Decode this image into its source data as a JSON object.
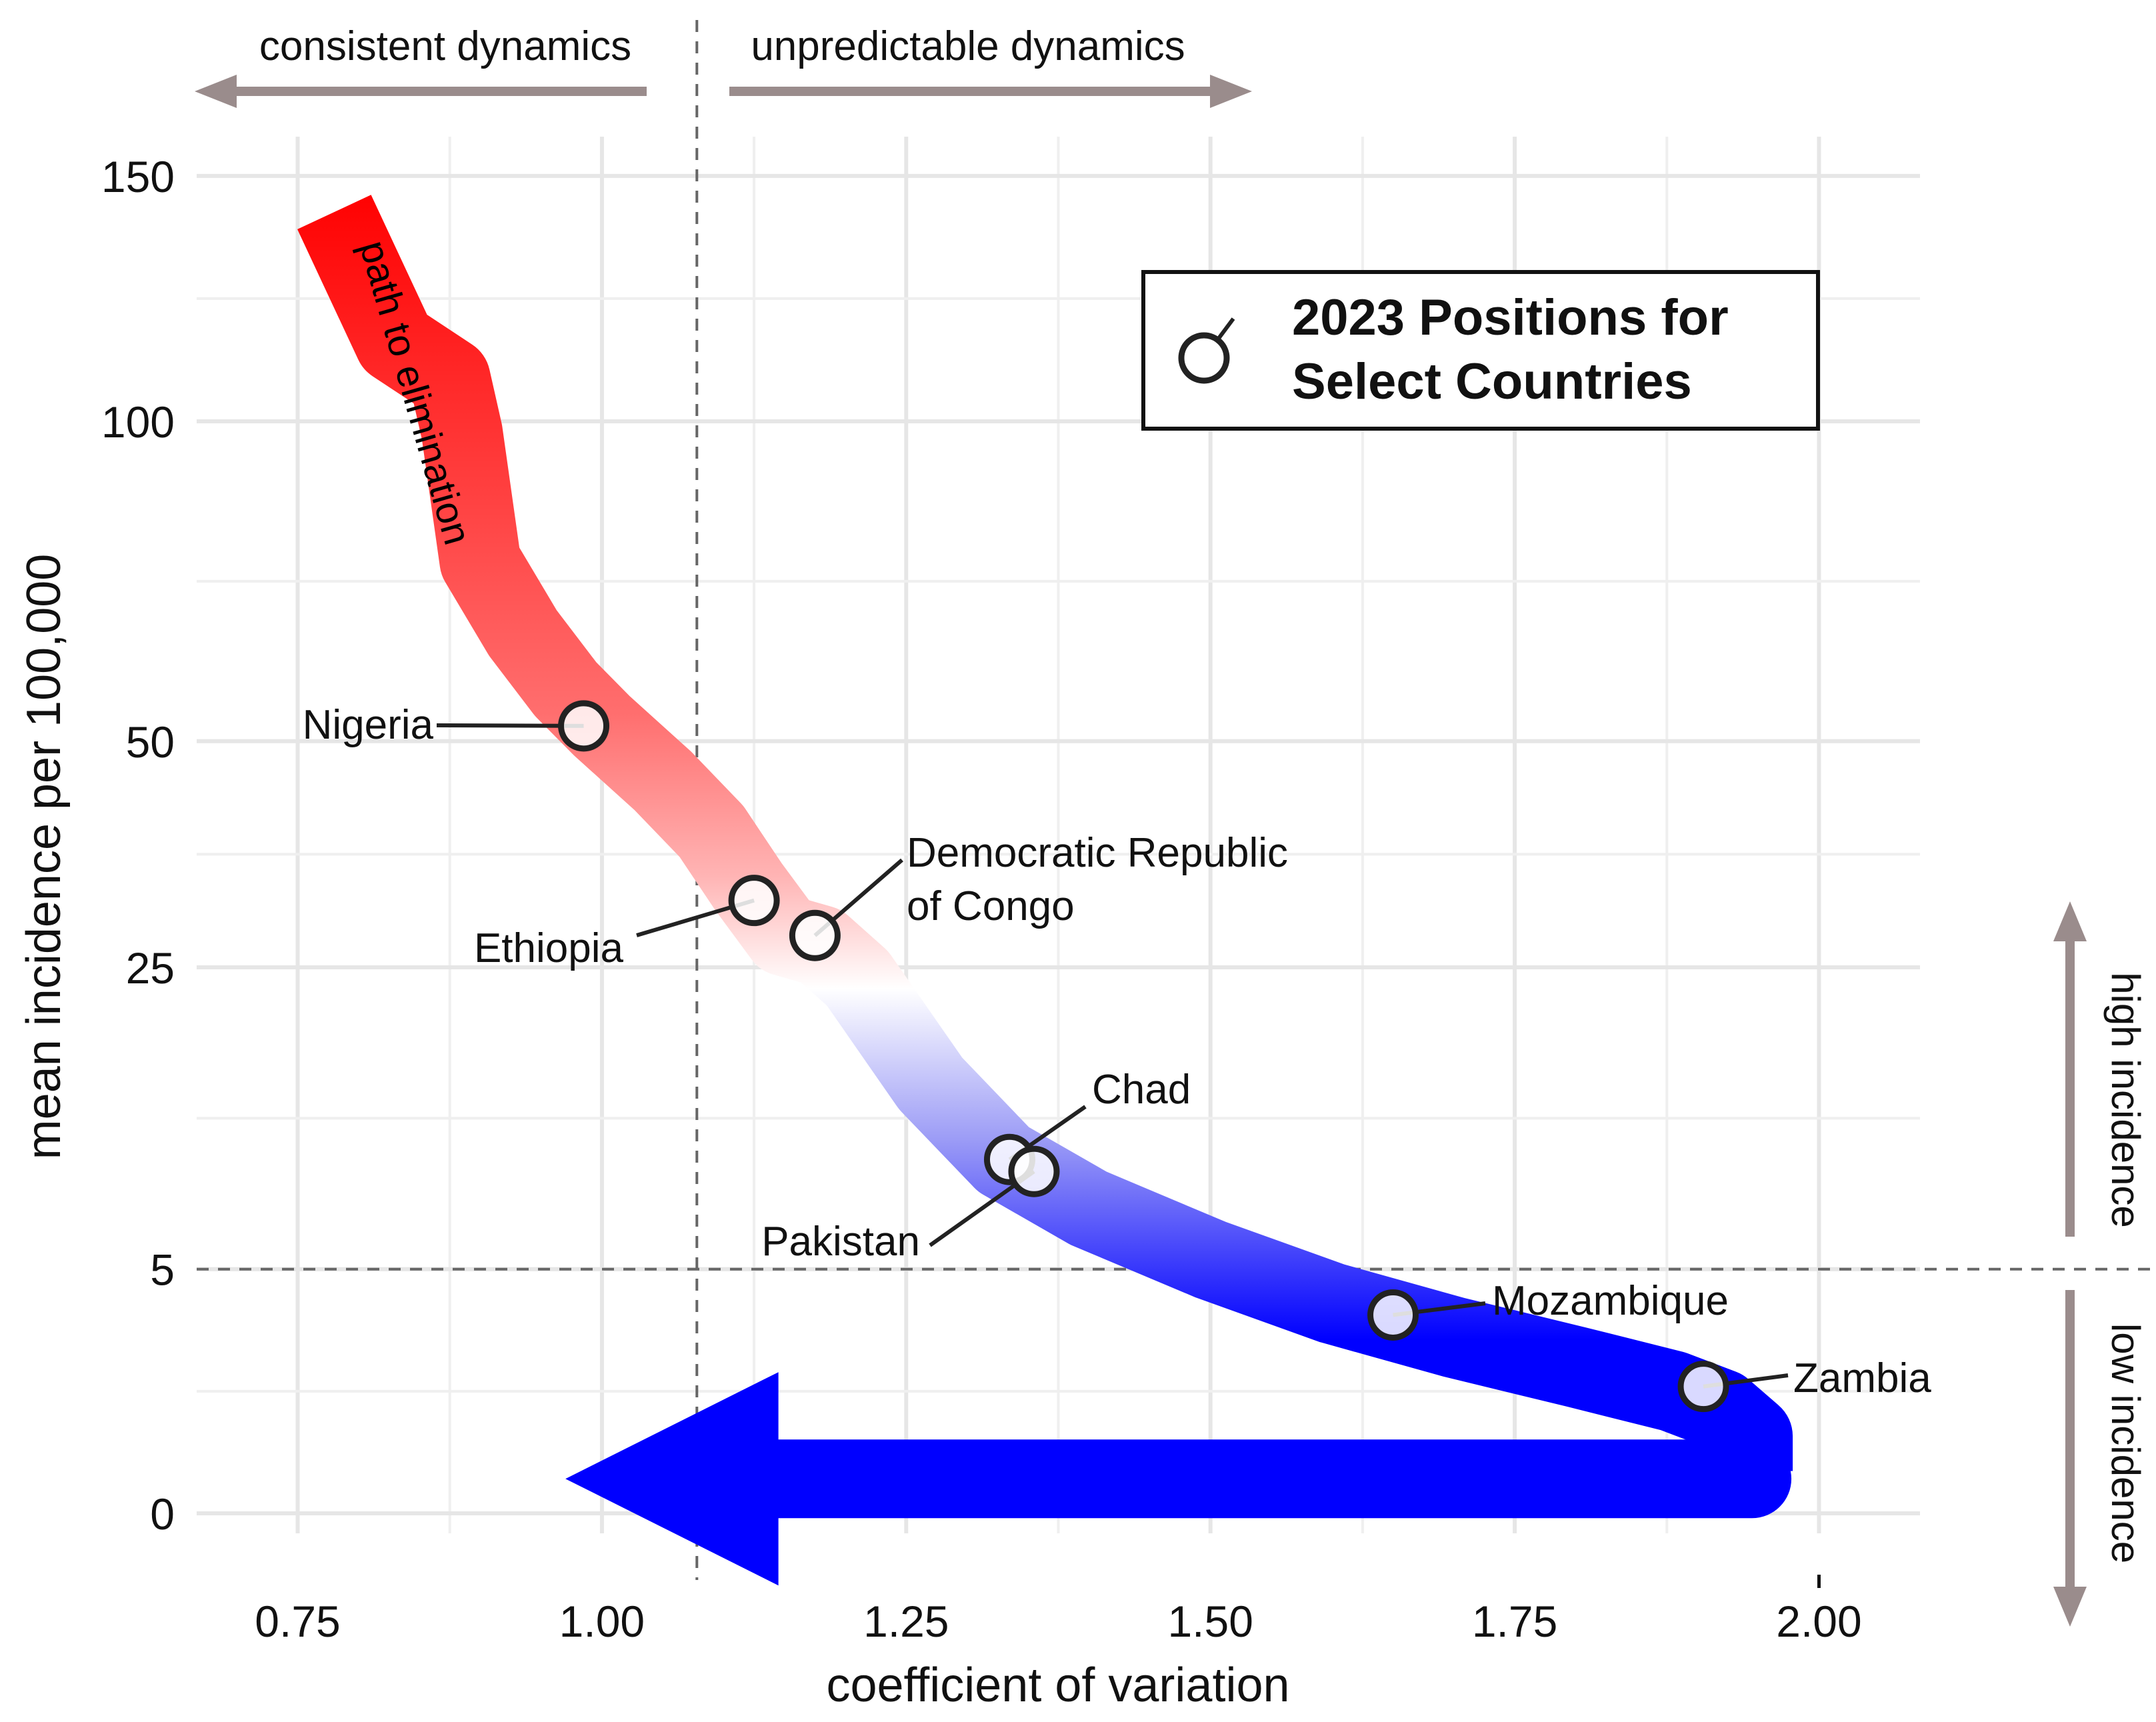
{
  "chart_data": {
    "type": "line",
    "title": "",
    "xlabel": "coefficient of variation",
    "ylabel": "mean incidence per 100,000",
    "xlim": [
      0.667,
      2.083
    ],
    "x_ticks": [
      0.75,
      1.0,
      1.25,
      1.5,
      1.75,
      2.0
    ],
    "x_tick_labels": [
      "0.75",
      "1.00",
      "1.25",
      "1.50",
      "1.75",
      "2.00"
    ],
    "y_ticks": [
      0,
      5,
      25,
      50,
      100,
      150
    ],
    "y_tick_labels": [
      "0",
      "5",
      "25",
      "50",
      "100",
      "150"
    ],
    "y_scale": "square-root",
    "vline_x": 1.078,
    "hline_y": 5,
    "path_label": "path to elimination",
    "path": {
      "x": [
        0.78,
        0.83,
        0.875,
        0.885,
        0.9,
        0.935,
        0.97,
        1.0,
        1.05,
        1.09,
        1.12,
        1.15,
        1.18,
        1.21,
        1.27,
        1.33,
        1.4,
        1.5,
        1.6,
        1.7,
        1.8,
        1.88,
        1.92,
        1.945,
        1.945
      ],
      "y": [
        142,
        115,
        108,
        98,
        76,
        65,
        57,
        52,
        45,
        39,
        33,
        28,
        27,
        24,
        15.5,
        10.5,
        7.8,
        5.4,
        3.7,
        2.6,
        1.8,
        1.25,
        0.9,
        0.5,
        0.15
      ],
      "colors": [
        "#ff0000",
        "#ffffff",
        "#0000ff"
      ]
    },
    "arrow": {
      "x_from": 1.945,
      "x_to": 0.97,
      "y": 0.1,
      "color": "#0000ff"
    },
    "points": [
      {
        "name": "Nigeria",
        "x": 0.985,
        "y": 52,
        "label_lines": [
          "Nigeria"
        ]
      },
      {
        "name": "Ethiopia",
        "x": 1.125,
        "y": 31.5,
        "label_lines": [
          "Ethiopia"
        ]
      },
      {
        "name": "Democratic Republic of Congo",
        "x": 1.175,
        "y": 28,
        "label_lines": [
          "Democratic Republic",
          "of Congo"
        ]
      },
      {
        "name": "Chad",
        "x": 1.335,
        "y": 10.5,
        "label_lines": [
          "Chad"
        ]
      },
      {
        "name": "Pakistan",
        "x": 1.355,
        "y": 9.8,
        "label_lines": [
          "Pakistan"
        ]
      },
      {
        "name": "Mozambique",
        "x": 1.65,
        "y": 3.3,
        "label_lines": [
          "Mozambique"
        ]
      },
      {
        "name": "Zambia",
        "x": 1.905,
        "y": 1.35,
        "label_lines": [
          "Zambia"
        ]
      }
    ],
    "legend": {
      "lines": [
        "2023 Positions for",
        "Select Countries"
      ],
      "placement": "top-right"
    },
    "annotations": {
      "left_arrow": "consistent dynamics",
      "right_arrow": "unpredictable dynamics",
      "up_arrow": "high incidence",
      "down_arrow": "low incidence"
    }
  }
}
